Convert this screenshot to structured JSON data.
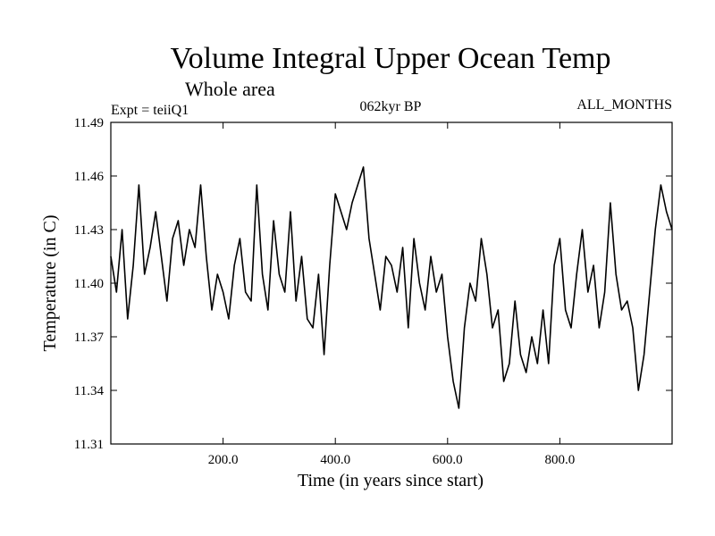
{
  "chart_data": {
    "type": "line",
    "title": "Volume Integral Upper Ocean Temp",
    "subtitle": "Whole area",
    "annotations": {
      "left": "Expt = teiiQ1",
      "center": "062kyr BP",
      "right": "ALL_MONTHS"
    },
    "xlabel": "Time (in years since start)",
    "ylabel": "Temperature (in C)",
    "xlim": [
      0,
      1000
    ],
    "ylim": [
      11.31,
      11.49
    ],
    "x_ticks": [
      200,
      400,
      600,
      800
    ],
    "x_tick_labels": [
      "200.0",
      "400.0",
      "600.0",
      "800.0"
    ],
    "y_ticks": [
      11.31,
      11.34,
      11.37,
      11.4,
      11.43,
      11.46,
      11.49
    ],
    "y_tick_labels": [
      "11.31",
      "11.34",
      "11.37",
      "11.40",
      "11.43",
      "11.46",
      "11.49"
    ],
    "grid": false,
    "line_color": "#000000",
    "series": [
      {
        "x": [
          0,
          10,
          20,
          30,
          40,
          50,
          60,
          70,
          80,
          90,
          100,
          110,
          120,
          130,
          140,
          150,
          160,
          170,
          180,
          190,
          200,
          210,
          220,
          230,
          240,
          250,
          260,
          270,
          280,
          290,
          300,
          310,
          320,
          330,
          340,
          350,
          360,
          370,
          380,
          390,
          400,
          410,
          420,
          430,
          440,
          450,
          460,
          470,
          480,
          490,
          500,
          510,
          520,
          530,
          540,
          550,
          560,
          570,
          580,
          590,
          600,
          610,
          620,
          630,
          640,
          650,
          660,
          670,
          680,
          690,
          700,
          710,
          720,
          730,
          740,
          750,
          760,
          770,
          780,
          790,
          800,
          810,
          820,
          830,
          840,
          850,
          860,
          870,
          880,
          890,
          900,
          910,
          920,
          930,
          940,
          950,
          960,
          970,
          980,
          990,
          1000
        ],
        "values": [
          11.415,
          11.395,
          11.43,
          11.38,
          11.41,
          11.455,
          11.405,
          11.42,
          11.44,
          11.415,
          11.39,
          11.425,
          11.435,
          11.41,
          11.43,
          11.42,
          11.455,
          11.415,
          11.385,
          11.405,
          11.395,
          11.38,
          11.41,
          11.425,
          11.395,
          11.39,
          11.455,
          11.405,
          11.385,
          11.435,
          11.405,
          11.395,
          11.44,
          11.39,
          11.415,
          11.38,
          11.375,
          11.405,
          11.36,
          11.41,
          11.45,
          11.44,
          11.43,
          11.445,
          11.455,
          11.465,
          11.425,
          11.405,
          11.385,
          11.415,
          11.41,
          11.395,
          11.42,
          11.375,
          11.425,
          11.4,
          11.385,
          11.415,
          11.395,
          11.405,
          11.37,
          11.345,
          11.33,
          11.375,
          11.4,
          11.39,
          11.425,
          11.405,
          11.375,
          11.385,
          11.345,
          11.355,
          11.39,
          11.36,
          11.35,
          11.37,
          11.355,
          11.385,
          11.355,
          11.41,
          11.425,
          11.385,
          11.375,
          11.405,
          11.43,
          11.395,
          11.41,
          11.375,
          11.395,
          11.445,
          11.405,
          11.385,
          11.39,
          11.375,
          11.34,
          11.36,
          11.395,
          11.43,
          11.455,
          11.44,
          11.43
        ]
      }
    ]
  }
}
